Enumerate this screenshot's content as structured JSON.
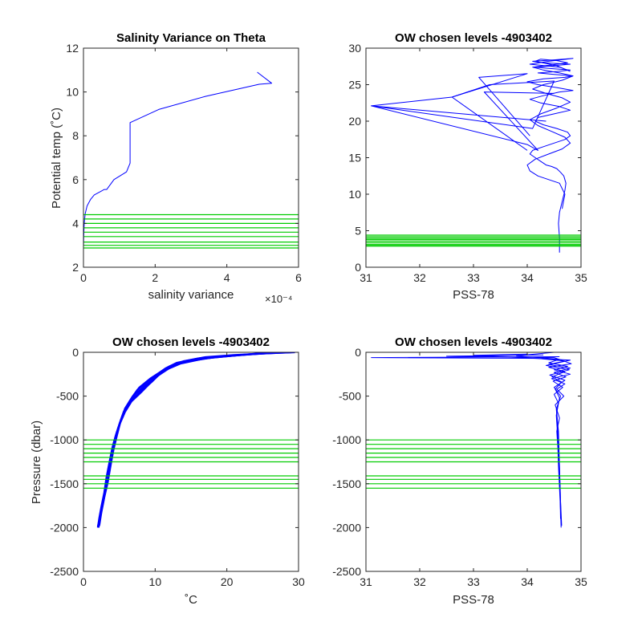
{
  "chart_data": [
    {
      "type": "line",
      "title": "Salinity Variance on Theta",
      "xlabel": "salinity variance",
      "ylabel": "Potential temp (˚C)",
      "x_exponent_label": "×10⁻⁴",
      "xlim": [
        0,
        6
      ],
      "ylim": [
        2,
        12
      ],
      "xticks": [
        0,
        2,
        4,
        6
      ],
      "yticks": [
        2,
        4,
        6,
        8,
        10,
        12
      ],
      "series": [
        {
          "color": "#0000ff",
          "x": [
            4.85,
            5.25,
            4.9,
            3.4,
            2.1,
            1.3,
            1.3,
            1.2,
            0.85,
            0.65,
            0.58,
            0.3,
            0.2,
            0.1,
            0.05,
            0.02,
            0.01,
            0.0
          ],
          "y": [
            10.9,
            10.4,
            10.35,
            9.8,
            9.2,
            8.6,
            6.75,
            6.35,
            6.0,
            5.55,
            5.55,
            5.3,
            5.1,
            4.8,
            4.45,
            4.0,
            3.5,
            2.9
          ]
        }
      ],
      "hlines": {
        "color": "#00cc00",
        "values": [
          4.4,
          4.2,
          4.0,
          3.8,
          3.6,
          3.4,
          3.15,
          3.0,
          2.88
        ]
      }
    },
    {
      "type": "line",
      "title": "OW chosen levels -4903402",
      "xlabel": "PSS-78",
      "ylabel": "",
      "xlim": [
        31,
        35
      ],
      "ylim": [
        0,
        30
      ],
      "xticks": [
        31,
        32,
        33,
        34,
        35
      ],
      "yticks": [
        0,
        5,
        10,
        15,
        20,
        25,
        30
      ],
      "series": [
        {
          "color": "#0000ff",
          "x": [
            34.6,
            34.6,
            34.58,
            34.6,
            34.65,
            34.7,
            34.72,
            34.68,
            34.62,
            34.55,
            34.45,
            34.35,
            34.25,
            34.15,
            34.05,
            34.1,
            34.3,
            34.5,
            34.7,
            34.8,
            34.75,
            34.55,
            34.3,
            34.15,
            34.2,
            34.5,
            34.8,
            34.6,
            34.25,
            34.05,
            34.3,
            34.6,
            34.85,
            34.55,
            34.2,
            34.0,
            34.3,
            34.7,
            34.85,
            34.5,
            34.2,
            34.55,
            34.8,
            34.45,
            34.15,
            34.5,
            34.8,
            34.3,
            34.1,
            34.5,
            34.85,
            34.4,
            34.05,
            34.6,
            34.75
          ],
          "y": [
            2.0,
            4.0,
            6.0,
            7.5,
            9.0,
            10.5,
            11.5,
            12.5,
            13.0,
            13.5,
            13.8,
            14.0,
            14.5,
            15.0,
            15.5,
            16.0,
            16.5,
            17.0,
            17.5,
            18.0,
            18.5,
            19.0,
            19.5,
            20.0,
            20.5,
            21.0,
            21.5,
            22.0,
            22.5,
            23.0,
            23.5,
            24.0,
            24.2,
            24.6,
            25.0,
            25.4,
            25.8,
            26.0,
            26.2,
            26.4,
            26.6,
            26.8,
            27.0,
            27.2,
            27.4,
            27.6,
            27.8,
            28.0,
            28.2,
            28.4,
            28.6,
            28.2,
            27.8,
            27.4,
            27.0
          ]
        },
        {
          "color": "#0000ff",
          "x": [
            34.65,
            34.7,
            34.6,
            34.4,
            34.2,
            34.05,
            34.0,
            34.15,
            34.4,
            34.65,
            34.8,
            34.7,
            34.45,
            34.2,
            34.05,
            34.25,
            34.55,
            34.8,
            34.65,
            34.35,
            34.1,
            34.3,
            34.65,
            34.85,
            34.6,
            34.3,
            34.1,
            34.45,
            34.75,
            34.55,
            34.25,
            34.15,
            34.55,
            34.8
          ],
          "y": [
            8.0,
            10.0,
            11.5,
            12.0,
            12.5,
            13.2,
            14.0,
            14.8,
            15.5,
            16.2,
            17.0,
            17.8,
            18.6,
            19.4,
            20.2,
            21.0,
            21.8,
            22.6,
            23.2,
            23.8,
            24.4,
            25.0,
            25.6,
            26.2,
            26.6,
            27.0,
            27.4,
            27.7,
            28.0,
            28.3,
            28.5,
            28.2,
            27.6,
            26.8
          ]
        },
        {
          "color": "#0000ff",
          "x": [
            34.05,
            33.1,
            34.0,
            32.6,
            31.1,
            34.0,
            34.2,
            33.2,
            34.5
          ],
          "y": [
            18.0,
            26.0,
            26.5,
            23.3,
            22.1,
            16.8,
            16.0,
            24.0,
            23.8
          ]
        },
        {
          "color": "#0000ff",
          "x": [
            34.0,
            32.6,
            33.3,
            34.5,
            34.1,
            31.1,
            34.35
          ],
          "y": [
            16.0,
            23.3,
            25.0,
            25.5,
            19.0,
            22.1,
            20.0
          ]
        }
      ],
      "hlines": {
        "color": "#00cc00",
        "values": [
          4.4,
          4.2,
          4.0,
          3.8,
          3.6,
          3.4,
          3.15,
          3.0,
          2.88
        ]
      }
    },
    {
      "type": "line",
      "title": "OW chosen levels -4903402",
      "xlabel": "˚C",
      "ylabel": "Pressure (dbar)",
      "xlim": [
        0,
        30
      ],
      "ylim": [
        -2500,
        0
      ],
      "xticks": [
        0,
        10,
        20,
        30
      ],
      "yticks": [
        -2500,
        -2000,
        -1500,
        -1000,
        -500,
        0
      ],
      "series": [
        {
          "color": "#0000ff",
          "x": [
            29,
            25,
            20,
            16,
            13,
            11.5,
            10.5,
            9,
            7.5,
            6.5,
            5.6,
            5.0,
            4.5,
            4.0,
            3.6,
            3.2,
            2.8,
            2.4,
            2.1
          ],
          "y": [
            0,
            -15,
            -40,
            -70,
            -120,
            -180,
            -240,
            -330,
            -430,
            -550,
            -680,
            -820,
            -980,
            -1150,
            -1330,
            -1520,
            -1700,
            -1860,
            -2000
          ]
        },
        {
          "color": "#0000ff",
          "x": [
            28,
            24,
            19,
            15,
            12.5,
            11,
            10,
            8.6,
            7.2,
            6.2,
            5.4,
            4.8,
            4.3,
            3.9,
            3.5,
            3.1,
            2.7,
            2.35,
            2.05
          ],
          "y": [
            0,
            -20,
            -50,
            -90,
            -150,
            -220,
            -290,
            -380,
            -480,
            -600,
            -730,
            -870,
            -1020,
            -1190,
            -1370,
            -1550,
            -1720,
            -1870,
            -2000
          ]
        },
        {
          "color": "#0000ff",
          "x": [
            27,
            23,
            18,
            14,
            12,
            10.5,
            9.5,
            8.2,
            6.9,
            5.9,
            5.2,
            4.6,
            4.1,
            3.7,
            3.3,
            3.0,
            2.6,
            2.3,
            2.0
          ],
          "y": [
            0,
            -25,
            -60,
            -110,
            -180,
            -260,
            -340,
            -430,
            -530,
            -650,
            -780,
            -920,
            -1070,
            -1230,
            -1400,
            -1580,
            -1740,
            -1880,
            -1990
          ]
        },
        {
          "color": "#0000ff",
          "x": [
            29.5,
            26,
            21,
            17,
            14,
            12,
            10.8,
            9.3,
            7.8,
            6.8,
            5.8,
            5.2,
            4.7,
            4.2,
            3.8,
            3.4,
            2.9,
            2.5,
            2.2
          ],
          "y": [
            0,
            -10,
            -30,
            -55,
            -100,
            -160,
            -220,
            -300,
            -400,
            -510,
            -640,
            -780,
            -940,
            -1110,
            -1290,
            -1480,
            -1660,
            -1830,
            -1980
          ]
        },
        {
          "color": "#0000ff",
          "x": [
            26,
            22,
            17,
            13.5,
            11.5,
            10.2,
            9.2,
            8.0,
            6.7,
            5.8,
            5.1,
            4.5,
            4.0,
            3.6,
            3.2,
            2.9,
            2.5,
            2.2,
            2.0
          ],
          "y": [
            0,
            -30,
            -70,
            -130,
            -200,
            -280,
            -360,
            -460,
            -560,
            -680,
            -810,
            -950,
            -1100,
            -1260,
            -1430,
            -1600,
            -1760,
            -1890,
            -2000
          ]
        }
      ],
      "hlines": {
        "color": "#00cc00",
        "values": [
          -1000,
          -1050,
          -1100,
          -1150,
          -1200,
          -1250,
          -1410,
          -1450,
          -1500,
          -1550
        ]
      }
    },
    {
      "type": "line",
      "title": "OW chosen levels -4903402",
      "xlabel": "PSS-78",
      "ylabel": "",
      "xlim": [
        31,
        35
      ],
      "ylim": [
        -2500,
        0
      ],
      "xticks": [
        31,
        32,
        33,
        34,
        35
      ],
      "yticks": [
        -2500,
        -2000,
        -1500,
        -1000,
        -500,
        0
      ],
      "series": [
        {
          "color": "#0000ff",
          "x": [
            34.5,
            33.8,
            34.6,
            34.4,
            34.75,
            34.5,
            34.8,
            34.45,
            34.7,
            34.55,
            34.68,
            34.52,
            34.6,
            34.55,
            34.57,
            34.58,
            34.6,
            34.62,
            34.63
          ],
          "y": [
            0,
            -40,
            -80,
            -120,
            -160,
            -200,
            -250,
            -300,
            -360,
            -420,
            -500,
            -600,
            -750,
            -900,
            -1100,
            -1300,
            -1550,
            -1800,
            -2000
          ]
        },
        {
          "color": "#0000ff",
          "x": [
            34.6,
            31.1,
            34.2,
            34.7,
            34.4,
            34.8,
            34.5,
            34.72,
            34.48,
            34.66,
            34.5,
            34.58,
            34.54,
            34.56,
            34.58,
            34.6,
            34.62,
            34.64
          ],
          "y": [
            -50,
            -60,
            -70,
            -100,
            -140,
            -180,
            -230,
            -280,
            -330,
            -400,
            -480,
            -580,
            -720,
            -900,
            -1150,
            -1400,
            -1700,
            -1980
          ]
        },
        {
          "color": "#0000ff",
          "x": [
            34.3,
            32.5,
            34.5,
            34.82,
            34.4,
            34.7,
            34.46,
            34.64,
            34.52,
            34.6,
            34.55,
            34.57,
            34.59,
            34.61,
            34.63
          ],
          "y": [
            -30,
            -45,
            -60,
            -130,
            -170,
            -220,
            -280,
            -340,
            -420,
            -520,
            -680,
            -880,
            -1150,
            -1500,
            -1950
          ]
        },
        {
          "color": "#0000ff",
          "x": [
            34.0,
            33.0,
            34.8,
            34.35,
            34.78,
            34.42,
            34.7,
            34.5,
            34.62,
            34.54,
            34.58,
            34.6,
            34.62
          ],
          "y": [
            -20,
            -35,
            -90,
            -150,
            -200,
            -260,
            -320,
            -400,
            -500,
            -650,
            -900,
            -1300,
            -1900
          ]
        }
      ],
      "hlines": {
        "color": "#00cc00",
        "values": [
          -1000,
          -1050,
          -1100,
          -1150,
          -1200,
          -1250,
          -1410,
          -1450,
          -1500,
          -1550
        ]
      }
    }
  ]
}
